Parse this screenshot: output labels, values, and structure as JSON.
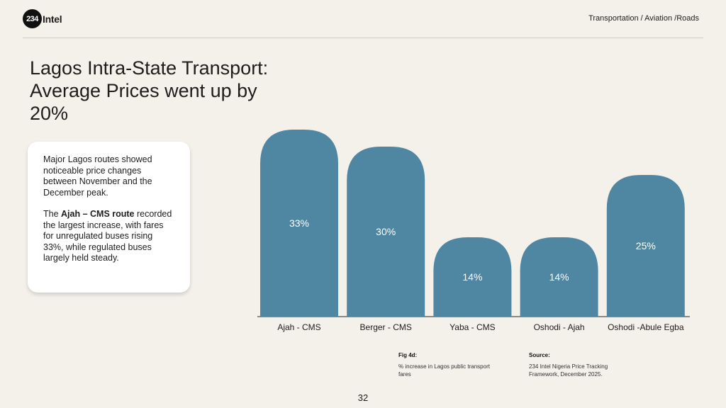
{
  "header": {
    "logo_number": "234",
    "logo_text": "Intel",
    "breadcrumb": "Transportation / Aviation /Roads"
  },
  "title": "Lagos Intra-State Transport: Average Prices went up by 20%",
  "card": {
    "p1": "Major Lagos routes showed noticeable price changes between November and the December peak.",
    "p2_pre": "The ",
    "p2_bold": "Ajah – CMS route",
    "p2_post": " recorded the largest increase, with fares for unregulated buses rising 33%, while regulated buses largely held steady."
  },
  "chart_data": {
    "type": "bar",
    "title": "",
    "categories": [
      "Ajah - CMS",
      "Berger - CMS",
      "Yaba - CMS",
      "Oshodi - Ajah",
      "Oshodi -Abule Egba"
    ],
    "values": [
      33,
      30,
      14,
      14,
      25
    ],
    "value_labels": [
      "33%",
      "30%",
      "14%",
      "14%",
      "25%"
    ],
    "unit": "%",
    "ylim": [
      0,
      33
    ],
    "grid": false,
    "color": "#4f86a1"
  },
  "fig": {
    "label": "Fig 4d:",
    "caption": "% increase in Lagos public transport fares"
  },
  "source": {
    "label": "Source:",
    "text": "234 Intel Nigeria Price Tracking Framework, December 2025."
  },
  "page_number": "32"
}
